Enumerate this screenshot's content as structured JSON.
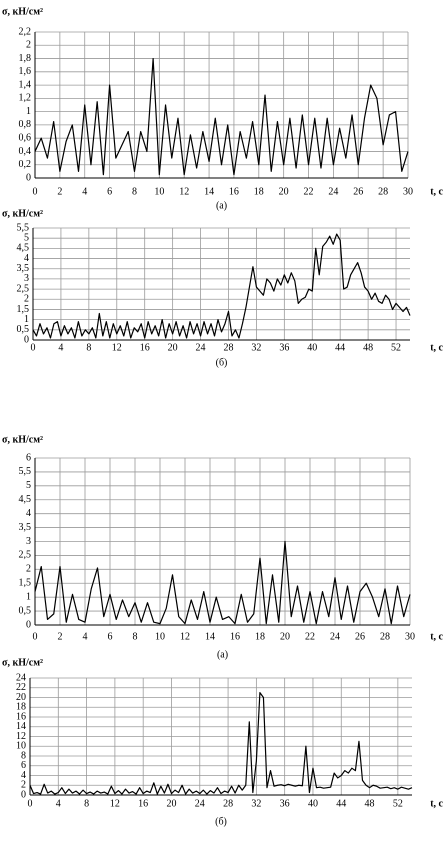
{
  "chart_data": [
    {
      "type": "line",
      "y_label": "σ, кН/см²",
      "x_label": "t, с",
      "caption": "(а)",
      "color": "#000000",
      "grid": true,
      "xlim": [
        0,
        30
      ],
      "xticks": [
        0,
        2,
        4,
        6,
        8,
        10,
        12,
        14,
        16,
        18,
        20,
        22,
        24,
        26,
        28,
        30
      ],
      "ylim": [
        0,
        2.2
      ],
      "yticks": [
        0,
        {
          "value": 0.2,
          "label": "0,2"
        },
        {
          "value": 0.4,
          "label": "0,4"
        },
        {
          "value": 0.6,
          "label": "0,6"
        },
        {
          "value": 0.8,
          "label": "0,8"
        },
        1,
        {
          "value": 1.2,
          "label": "1,2"
        },
        {
          "value": 1.4,
          "label": "1,4"
        },
        {
          "value": 1.6,
          "label": "1,6"
        },
        {
          "value": 1.8,
          "label": "1,8"
        },
        2,
        {
          "value": 2.2,
          "label": "2,2"
        }
      ],
      "x": [
        0,
        0.5,
        1,
        1.5,
        2,
        2.5,
        3,
        3.5,
        4,
        4.5,
        5,
        5.5,
        6,
        6.5,
        7,
        7.5,
        8,
        8.5,
        9,
        9.5,
        10,
        10.5,
        11,
        11.5,
        12,
        12.5,
        13,
        13.5,
        14,
        14.5,
        15,
        15.5,
        16,
        16.5,
        17,
        17.5,
        18,
        18.5,
        19,
        19.5,
        20,
        20.5,
        21,
        21.5,
        22,
        22.5,
        23,
        23.5,
        24,
        24.5,
        25,
        25.5,
        26,
        26.5,
        27,
        27.5,
        28,
        28.5,
        29,
        29.5,
        30
      ],
      "values": [
        0.4,
        0.6,
        0.3,
        0.85,
        0.1,
        0.55,
        0.8,
        0.1,
        1.1,
        0.2,
        1.15,
        0.05,
        1.4,
        0.3,
        0.5,
        0.7,
        0.1,
        0.7,
        0.4,
        1.8,
        0.05,
        1.1,
        0.3,
        0.9,
        0.05,
        0.65,
        0.15,
        0.7,
        0.25,
        0.9,
        0.2,
        0.8,
        0.05,
        0.7,
        0.3,
        0.85,
        0.2,
        1.25,
        0.1,
        0.85,
        0.2,
        0.9,
        0.15,
        0.95,
        0.2,
        0.9,
        0.15,
        0.9,
        0.2,
        0.75,
        0.3,
        0.95,
        0.2,
        0.9,
        1.4,
        1.2,
        0.5,
        0.95,
        1.0,
        0.1,
        0.4
      ]
    },
    {
      "type": "line",
      "y_label": "σ, кН/см²",
      "x_label": "t, с",
      "caption": "(б)",
      "color": "#000000",
      "grid": true,
      "xlim": [
        0,
        54
      ],
      "xticks": [
        0,
        4,
        8,
        12,
        16,
        20,
        24,
        28,
        32,
        36,
        40,
        44,
        48,
        52
      ],
      "ylim": [
        0,
        5.5
      ],
      "yticks": [
        0,
        {
          "value": 0.5,
          "label": "0,5"
        },
        1,
        {
          "value": 1.5,
          "label": "1,5"
        },
        2,
        {
          "value": 2.5,
          "label": "2,5"
        },
        3,
        {
          "value": 3.5,
          "label": "3,5"
        },
        4,
        {
          "value": 4.5,
          "label": "4,5"
        },
        5,
        {
          "value": 5.5,
          "label": "5,5"
        }
      ],
      "x": [
        0,
        0.5,
        1,
        1.5,
        2,
        2.5,
        3,
        3.5,
        4,
        4.5,
        5,
        5.5,
        6,
        6.5,
        7,
        7.5,
        8,
        8.5,
        9,
        9.5,
        10,
        10.5,
        11,
        11.5,
        12,
        12.5,
        13,
        13.5,
        14,
        14.5,
        15,
        15.5,
        16,
        16.5,
        17,
        17.5,
        18,
        18.5,
        19,
        19.5,
        20,
        20.5,
        21,
        21.5,
        22,
        22.5,
        23,
        23.5,
        24,
        24.5,
        25,
        25.5,
        26,
        26.5,
        27,
        27.5,
        28,
        28.5,
        29,
        29.5,
        30,
        30.5,
        31,
        31.5,
        32,
        32.5,
        33,
        33.5,
        34,
        34.5,
        35,
        35.5,
        36,
        36.5,
        37,
        37.5,
        38,
        38.5,
        39,
        39.5,
        40,
        40.5,
        41,
        41.5,
        42,
        42.5,
        43,
        43.5,
        44,
        44.5,
        45,
        45.5,
        46,
        46.5,
        47,
        47.5,
        48,
        48.5,
        49,
        49.5,
        50,
        50.5,
        51,
        51.5,
        52,
        52.5,
        53,
        53.5,
        54
      ],
      "values": [
        0.5,
        0.2,
        0.8,
        0.3,
        0.6,
        0.1,
        0.8,
        0.9,
        0.2,
        0.7,
        0.3,
        0.6,
        0.1,
        0.9,
        0.2,
        0.5,
        0.3,
        0.6,
        0.1,
        1.3,
        0.2,
        0.9,
        0.1,
        0.8,
        0.3,
        0.7,
        0.2,
        0.9,
        0.1,
        0.6,
        0.4,
        0.8,
        0.1,
        0.9,
        0.3,
        0.7,
        0.2,
        1.0,
        0.1,
        0.8,
        0.3,
        0.9,
        0.2,
        0.7,
        0.1,
        0.9,
        0.3,
        0.8,
        0.2,
        0.9,
        0.3,
        0.8,
        0.2,
        1.0,
        0.4,
        0.8,
        1.4,
        0.2,
        0.5,
        0.1,
        0.8,
        1.6,
        2.6,
        3.6,
        2.6,
        2.4,
        2.2,
        3.0,
        2.8,
        2.4,
        3.0,
        2.7,
        3.2,
        2.8,
        3.3,
        2.9,
        1.8,
        2.0,
        2.1,
        2.5,
        2.4,
        4.5,
        3.2,
        4.6,
        4.8,
        5.1,
        4.7,
        5.2,
        4.9,
        2.5,
        2.6,
        3.2,
        3.5,
        3.8,
        3.3,
        2.6,
        2.4,
        2.0,
        2.3,
        1.9,
        1.8,
        2.2,
        2.0,
        1.5,
        1.8,
        1.6,
        1.4,
        1.6,
        1.2
      ]
    },
    {
      "type": "line",
      "y_label": "σ, кН/см²",
      "x_label": "t, с",
      "caption": "(а)",
      "color": "#000000",
      "grid": true,
      "xlim": [
        0,
        30
      ],
      "xticks": [
        0,
        2,
        4,
        6,
        8,
        10,
        12,
        14,
        16,
        18,
        20,
        22,
        24,
        26,
        28,
        30
      ],
      "ylim": [
        0,
        6
      ],
      "yticks": [
        0,
        {
          "value": 0.5,
          "label": "0,5"
        },
        1,
        {
          "value": 1.5,
          "label": "1,5"
        },
        2,
        {
          "value": 2.5,
          "label": "2,5"
        },
        3,
        {
          "value": 3.5,
          "label": "3,5"
        },
        4,
        {
          "value": 4.5,
          "label": "4,5"
        },
        5,
        {
          "value": 5.5,
          "label": "5,5"
        },
        6
      ],
      "x": [
        0,
        0.5,
        1,
        1.5,
        2,
        2.5,
        3,
        3.5,
        4,
        4.5,
        5,
        5.5,
        6,
        6.5,
        7,
        7.5,
        8,
        8.5,
        9,
        9.5,
        10,
        10.5,
        11,
        11.5,
        12,
        12.5,
        13,
        13.5,
        14,
        14.5,
        15,
        15.5,
        16,
        16.5,
        17,
        17.5,
        18,
        18.5,
        19,
        19.5,
        20,
        20.5,
        21,
        21.5,
        22,
        22.5,
        23,
        23.5,
        24,
        24.5,
        25,
        25.5,
        26,
        26.5,
        27,
        27.5,
        28,
        28.5,
        29,
        29.5,
        30
      ],
      "values": [
        1.2,
        2.1,
        0.2,
        0.4,
        2.1,
        0.1,
        1.1,
        0.2,
        0.1,
        1.3,
        2.05,
        0.3,
        1.1,
        0.2,
        0.9,
        0.3,
        0.8,
        0.1,
        0.8,
        0.1,
        0.05,
        0.6,
        1.8,
        0.3,
        0.05,
        0.9,
        0.2,
        1.2,
        0.1,
        1.0,
        0.2,
        0.3,
        0.05,
        1.1,
        0.1,
        0.4,
        2.4,
        0.05,
        1.8,
        0.1,
        3.0,
        0.3,
        1.4,
        0.1,
        1.2,
        0.05,
        1.2,
        0.3,
        1.7,
        0.2,
        1.4,
        0.1,
        1.2,
        1.5,
        1.0,
        0.3,
        1.3,
        0.05,
        1.4,
        0.3,
        1.1
      ]
    },
    {
      "type": "line",
      "y_label": "σ, кН/см²",
      "x_label": "t, с",
      "caption": "(б)",
      "color": "#000000",
      "grid": true,
      "xlim": [
        0,
        54
      ],
      "xticks": [
        0,
        4,
        8,
        12,
        16,
        20,
        24,
        28,
        32,
        36,
        40,
        44,
        48,
        52
      ],
      "ylim": [
        0,
        24
      ],
      "yticks": [
        0,
        2,
        4,
        6,
        8,
        10,
        12,
        14,
        16,
        18,
        20,
        22,
        24
      ],
      "x": [
        0,
        0.5,
        1,
        1.5,
        2,
        2.5,
        3,
        3.5,
        4,
        4.5,
        5,
        5.5,
        6,
        6.5,
        7,
        7.5,
        8,
        8.5,
        9,
        9.5,
        10,
        10.5,
        11,
        11.5,
        12,
        12.5,
        13,
        13.5,
        14,
        14.5,
        15,
        15.5,
        16,
        16.5,
        17,
        17.5,
        18,
        18.5,
        19,
        19.5,
        20,
        20.5,
        21,
        21.5,
        22,
        22.5,
        23,
        23.5,
        24,
        24.5,
        25,
        25.5,
        26,
        26.5,
        27,
        27.5,
        28,
        28.5,
        29,
        29.5,
        30,
        30.5,
        31,
        31.5,
        32,
        32.5,
        33,
        33.5,
        34,
        34.5,
        35,
        35.5,
        36,
        36.5,
        37,
        37.5,
        38,
        38.5,
        39,
        39.5,
        40,
        40.5,
        41,
        41.5,
        42,
        42.5,
        43,
        43.5,
        44,
        44.5,
        45,
        45.5,
        46,
        46.5,
        47,
        47.5,
        48,
        48.5,
        49,
        49.5,
        50,
        50.5,
        51,
        51.5,
        52,
        52.5,
        53,
        53.5,
        54
      ],
      "values": [
        2.0,
        0.3,
        0.5,
        0.2,
        2.2,
        0.4,
        0.8,
        0.2,
        0.5,
        1.5,
        0.3,
        1.2,
        0.4,
        0.8,
        0.2,
        1.0,
        0.3,
        0.6,
        0.2,
        0.8,
        0.4,
        0.6,
        0.2,
        1.8,
        0.3,
        0.9,
        0.2,
        1.2,
        0.4,
        0.7,
        0.2,
        1.5,
        0.3,
        0.8,
        0.5,
        2.5,
        0.2,
        1.8,
        0.4,
        2.2,
        0.3,
        1.0,
        0.5,
        2.0,
        0.2,
        1.2,
        0.4,
        0.8,
        0.3,
        1.0,
        0.2,
        0.9,
        0.4,
        1.5,
        0.3,
        0.8,
        0.5,
        1.8,
        0.4,
        2.0,
        1.0,
        2,
        15,
        0.5,
        7,
        21,
        20,
        1.5,
        5,
        1.8,
        2.0,
        2.1,
        1.9,
        2.2,
        2.0,
        1.8,
        2.0,
        1.9,
        10,
        0.5,
        5.5,
        1.5,
        1.6,
        1.4,
        1.5,
        1.6,
        4.5,
        3.5,
        4.0,
        5.0,
        4.5,
        5.5,
        5.0,
        11,
        3.0,
        2.0,
        1.5,
        2.0,
        1.8,
        1.4,
        1.5,
        1.6,
        1.3,
        1.5,
        1.2,
        1.6,
        1.4,
        1.2,
        1.5
      ]
    }
  ]
}
